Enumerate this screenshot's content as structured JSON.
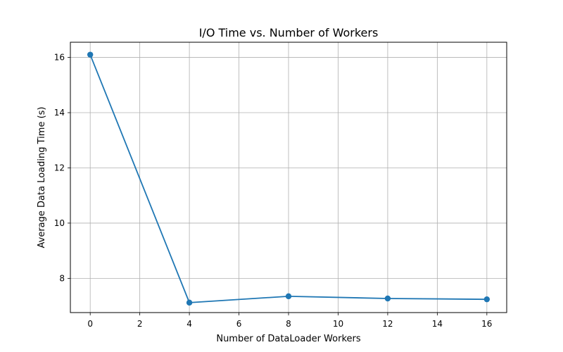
{
  "chart_data": {
    "type": "line",
    "title": "I/O Time vs. Number of Workers",
    "xlabel": "Number of DataLoader Workers",
    "ylabel": "Average Data Loading Time (s)",
    "xlim": [
      -0.8,
      16.8
    ],
    "ylim": [
      6.76,
      16.55
    ],
    "xticks": [
      0,
      2,
      4,
      6,
      8,
      10,
      12,
      14,
      16
    ],
    "yticks": [
      8,
      10,
      12,
      14,
      16
    ],
    "grid": true,
    "series": [
      {
        "color": "#1f77b4",
        "marker": "circle",
        "x": [
          0,
          4,
          8,
          12,
          16
        ],
        "y": [
          16.1,
          7.12,
          7.35,
          7.27,
          7.24
        ]
      }
    ]
  }
}
